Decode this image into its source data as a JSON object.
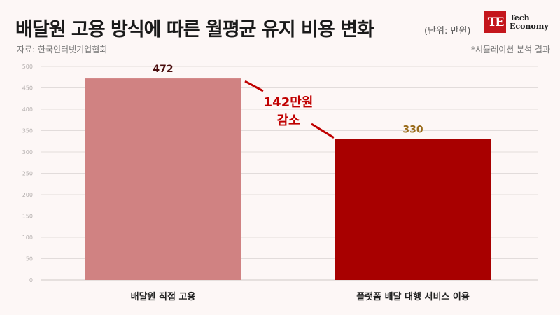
{
  "header": {
    "title": "배달원 고용 방식에 따른 월평균 유지 비용 변화",
    "unit": "(단위: 만원)",
    "source": "자료: 한국인터넷기업협회",
    "note": "*시뮬레이션 분석 결과"
  },
  "logo": {
    "mark": "TE",
    "line1": "Tech",
    "line2": "Economy"
  },
  "colors": {
    "bar1": "#d08282",
    "bar2": "#a80000",
    "label1": "#4a0e0e",
    "label2": "#9a6b1a",
    "annotation": "#c00000",
    "grid": "#e2dcdb",
    "tick": "#b5b0af"
  },
  "chart_data": {
    "type": "bar",
    "categories": [
      "배달원 직접 고용",
      "플랫폼 배달 대행 서비스 이용"
    ],
    "values": [
      472,
      330
    ],
    "ylim": [
      0,
      500
    ],
    "yticks": [
      0,
      50,
      100,
      150,
      200,
      250,
      300,
      350,
      400,
      450,
      500
    ],
    "grid": true,
    "annotation": {
      "line1": "142만원",
      "line2": "감소"
    }
  }
}
